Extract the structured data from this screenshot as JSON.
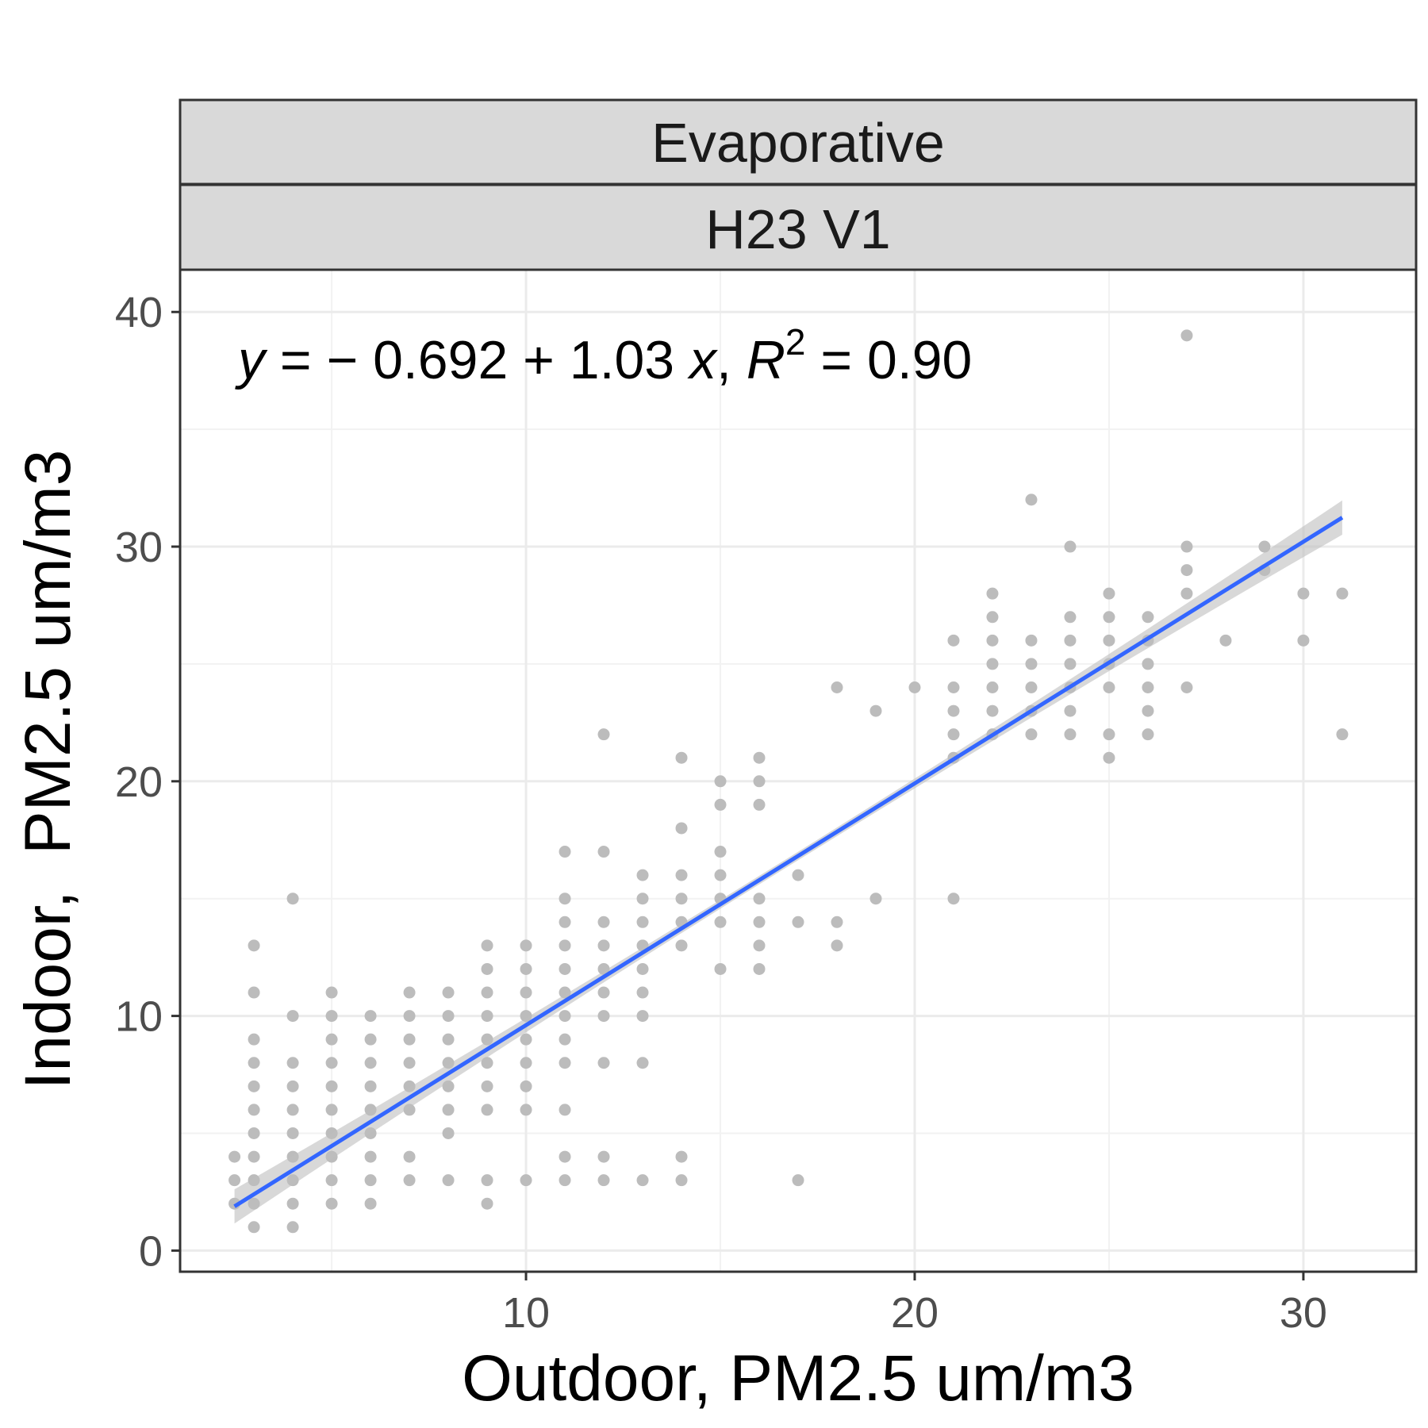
{
  "chart_data": {
    "type": "scatter",
    "facet_labels": [
      "Evaporative",
      "H23 V1"
    ],
    "xlabel": "Outdoor, PM2.5 um/m3",
    "ylabel": "Indoor,  PM2.5 um/m3",
    "xlim": [
      1.1,
      32.9
    ],
    "ylim": [
      -0.9,
      41.8
    ],
    "xticks": [
      10,
      20,
      30
    ],
    "yticks": [
      0,
      10,
      20,
      30,
      40
    ],
    "grid": true,
    "equation": {
      "y_var": "y",
      "lhs_rest": " = − 0.692 + 1.03 ",
      "x_var": "x",
      "sep": ", ",
      "r_var": "R",
      "r_exp": "2",
      "rhs": " = 0.90"
    },
    "fit_line": {
      "intercept": -0.692,
      "slope": 1.03,
      "x_range": [
        2.5,
        31
      ],
      "color": "#3366ff",
      "band_color": "#bebebe"
    },
    "point_color": "#bcbcbc",
    "points": [
      [
        2.5,
        2
      ],
      [
        2.5,
        3
      ],
      [
        2.5,
        4
      ],
      [
        3,
        1
      ],
      [
        3,
        2
      ],
      [
        3,
        3
      ],
      [
        3,
        4
      ],
      [
        3,
        5
      ],
      [
        3,
        6
      ],
      [
        3,
        7
      ],
      [
        3,
        8
      ],
      [
        3,
        9
      ],
      [
        3,
        11
      ],
      [
        3,
        13
      ],
      [
        4,
        1
      ],
      [
        4,
        2
      ],
      [
        4,
        3
      ],
      [
        4,
        4
      ],
      [
        4,
        5
      ],
      [
        4,
        6
      ],
      [
        4,
        7
      ],
      [
        4,
        8
      ],
      [
        4,
        10
      ],
      [
        4,
        15
      ],
      [
        5,
        2
      ],
      [
        5,
        3
      ],
      [
        5,
        4
      ],
      [
        5,
        5
      ],
      [
        5,
        6
      ],
      [
        5,
        7
      ],
      [
        5,
        8
      ],
      [
        5,
        9
      ],
      [
        5,
        10
      ],
      [
        5,
        11
      ],
      [
        6,
        2
      ],
      [
        6,
        3
      ],
      [
        6,
        4
      ],
      [
        6,
        5
      ],
      [
        6,
        6
      ],
      [
        6,
        7
      ],
      [
        6,
        8
      ],
      [
        6,
        9
      ],
      [
        6,
        10
      ],
      [
        7,
        3
      ],
      [
        7,
        4
      ],
      [
        7,
        6
      ],
      [
        7,
        7
      ],
      [
        7,
        8
      ],
      [
        7,
        9
      ],
      [
        7,
        10
      ],
      [
        7,
        11
      ],
      [
        8,
        3
      ],
      [
        8,
        5
      ],
      [
        8,
        6
      ],
      [
        8,
        7
      ],
      [
        8,
        8
      ],
      [
        8,
        9
      ],
      [
        8,
        10
      ],
      [
        8,
        11
      ],
      [
        9,
        2
      ],
      [
        9,
        3
      ],
      [
        9,
        6
      ],
      [
        9,
        7
      ],
      [
        9,
        8
      ],
      [
        9,
        9
      ],
      [
        9,
        10
      ],
      [
        9,
        11
      ],
      [
        9,
        12
      ],
      [
        9,
        13
      ],
      [
        10,
        3
      ],
      [
        10,
        6
      ],
      [
        10,
        7
      ],
      [
        10,
        8
      ],
      [
        10,
        9
      ],
      [
        10,
        10
      ],
      [
        10,
        11
      ],
      [
        10,
        12
      ],
      [
        10,
        13
      ],
      [
        11,
        3
      ],
      [
        11,
        4
      ],
      [
        11,
        6
      ],
      [
        11,
        8
      ],
      [
        11,
        9
      ],
      [
        11,
        10
      ],
      [
        11,
        11
      ],
      [
        11,
        12
      ],
      [
        11,
        13
      ],
      [
        11,
        14
      ],
      [
        11,
        15
      ],
      [
        11,
        17
      ],
      [
        12,
        3
      ],
      [
        12,
        4
      ],
      [
        12,
        8
      ],
      [
        12,
        10
      ],
      [
        12,
        11
      ],
      [
        12,
        12
      ],
      [
        12,
        13
      ],
      [
        12,
        14
      ],
      [
        12,
        17
      ],
      [
        12,
        22
      ],
      [
        13,
        3
      ],
      [
        13,
        8
      ],
      [
        13,
        10
      ],
      [
        13,
        11
      ],
      [
        13,
        12
      ],
      [
        13,
        13
      ],
      [
        13,
        14
      ],
      [
        13,
        15
      ],
      [
        13,
        16
      ],
      [
        14,
        3
      ],
      [
        14,
        4
      ],
      [
        14,
        13
      ],
      [
        14,
        14
      ],
      [
        14,
        15
      ],
      [
        14,
        16
      ],
      [
        14,
        18
      ],
      [
        14,
        21
      ],
      [
        15,
        12
      ],
      [
        15,
        14
      ],
      [
        15,
        15
      ],
      [
        15,
        16
      ],
      [
        15,
        17
      ],
      [
        15,
        19
      ],
      [
        15,
        20
      ],
      [
        16,
        12
      ],
      [
        16,
        13
      ],
      [
        16,
        14
      ],
      [
        16,
        15
      ],
      [
        16,
        19
      ],
      [
        16,
        20
      ],
      [
        16,
        21
      ],
      [
        17,
        3
      ],
      [
        17,
        14
      ],
      [
        17,
        16
      ],
      [
        18,
        13
      ],
      [
        18,
        14
      ],
      [
        18,
        24
      ],
      [
        19,
        15
      ],
      [
        19,
        23
      ],
      [
        20,
        24
      ],
      [
        21,
        15
      ],
      [
        21,
        21
      ],
      [
        21,
        22
      ],
      [
        21,
        23
      ],
      [
        21,
        24
      ],
      [
        21,
        26
      ],
      [
        22,
        22
      ],
      [
        22,
        23
      ],
      [
        22,
        24
      ],
      [
        22,
        25
      ],
      [
        22,
        26
      ],
      [
        22,
        27
      ],
      [
        22,
        28
      ],
      [
        23,
        22
      ],
      [
        23,
        23
      ],
      [
        23,
        24
      ],
      [
        23,
        25
      ],
      [
        23,
        26
      ],
      [
        23,
        32
      ],
      [
        24,
        22
      ],
      [
        24,
        23
      ],
      [
        24,
        24
      ],
      [
        24,
        25
      ],
      [
        24,
        26
      ],
      [
        24,
        27
      ],
      [
        24,
        30
      ],
      [
        25,
        21
      ],
      [
        25,
        22
      ],
      [
        25,
        24
      ],
      [
        25,
        25
      ],
      [
        25,
        26
      ],
      [
        25,
        27
      ],
      [
        25,
        28
      ],
      [
        26,
        22
      ],
      [
        26,
        23
      ],
      [
        26,
        24
      ],
      [
        26,
        25
      ],
      [
        26,
        26
      ],
      [
        26,
        27
      ],
      [
        27,
        24
      ],
      [
        27,
        28
      ],
      [
        27,
        29
      ],
      [
        27,
        30
      ],
      [
        27,
        39
      ],
      [
        28,
        26
      ],
      [
        29,
        29
      ],
      [
        29,
        30
      ],
      [
        30,
        26
      ],
      [
        30,
        28
      ],
      [
        31,
        22
      ],
      [
        31,
        28
      ]
    ]
  }
}
